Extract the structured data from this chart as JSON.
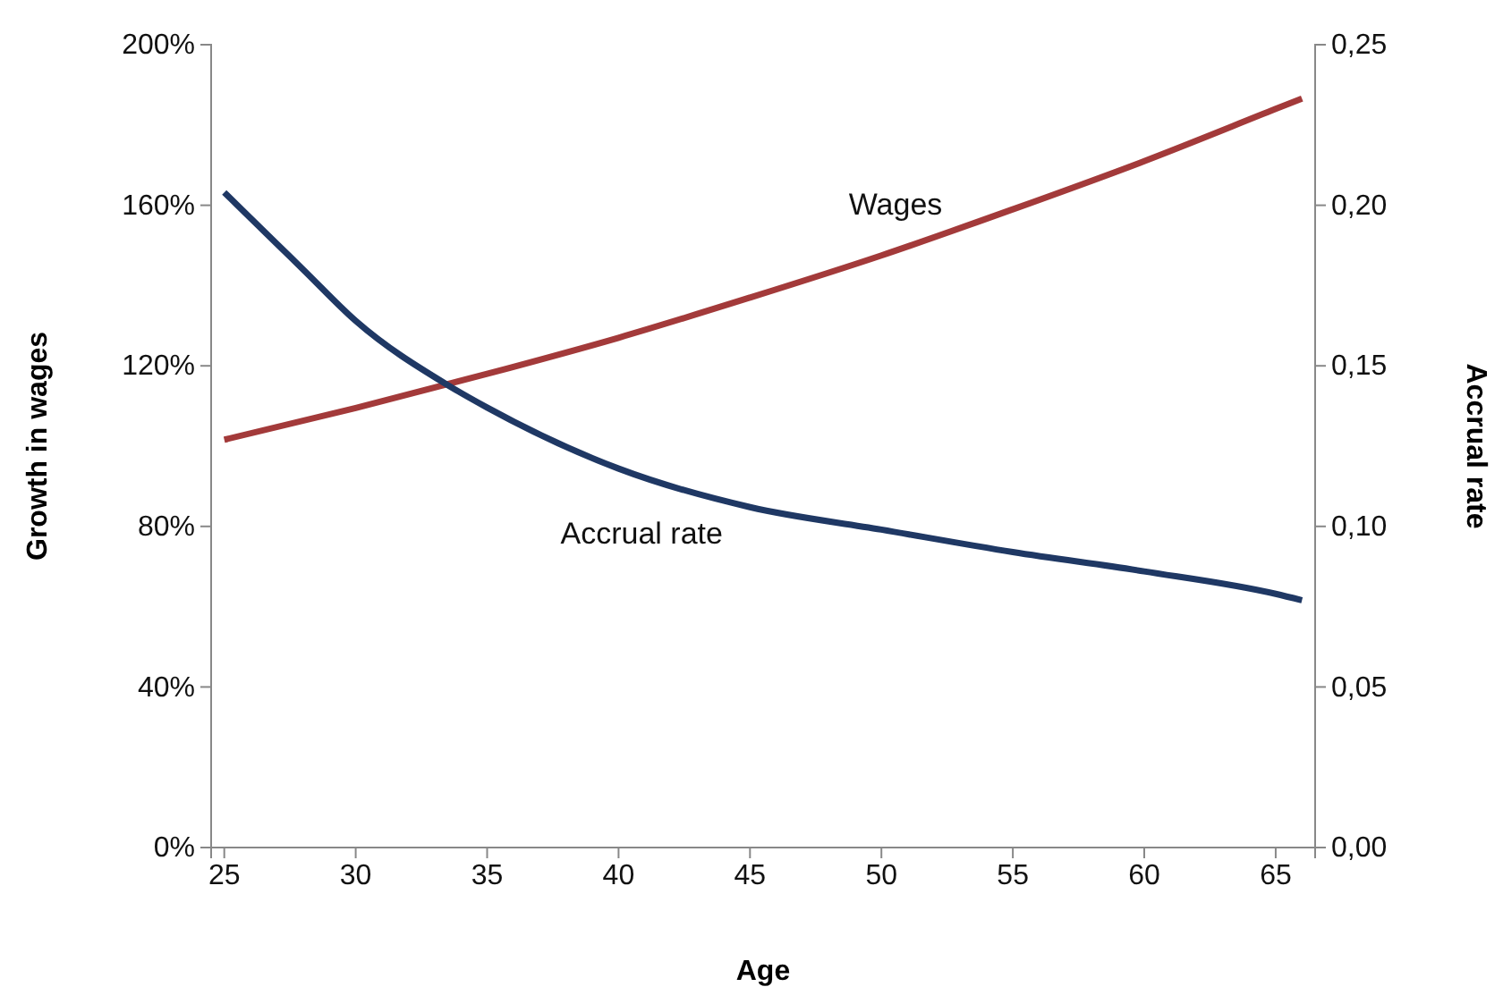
{
  "chart_data": {
    "type": "line",
    "xlabel": "Age",
    "ylabel": "Growth in wages",
    "y2label": "Accrual rate",
    "xlim": [
      24.5,
      66.5
    ],
    "xticks": [
      25,
      30,
      35,
      40,
      45,
      50,
      55,
      60,
      65
    ],
    "ylim": [
      0,
      200
    ],
    "yticks": [
      {
        "value": 0,
        "label": "0%"
      },
      {
        "value": 40,
        "label": "40%"
      },
      {
        "value": 80,
        "label": "80%"
      },
      {
        "value": 120,
        "label": "120%"
      },
      {
        "value": 160,
        "label": "160%"
      },
      {
        "value": 200,
        "label": "200%"
      }
    ],
    "y2lim": [
      0,
      0.25
    ],
    "y2ticks": [
      {
        "value": 0,
        "label": "0,00"
      },
      {
        "value": 0.05,
        "label": "0,05"
      },
      {
        "value": 0.1,
        "label": "0,10"
      },
      {
        "value": 0.15,
        "label": "0,15"
      },
      {
        "value": 0.2,
        "label": "0,20"
      },
      {
        "value": 0.25,
        "label": "0,25"
      }
    ],
    "grid": false,
    "legend": false,
    "marker": "none",
    "line_style": "solid",
    "series": [
      {
        "name": "Wages",
        "color": "#a33a3a",
        "x": [
          25,
          30,
          35,
          40,
          45,
          50,
          55,
          60,
          65,
          66
        ],
        "values": [
          101.6,
          109.5,
          118,
          127,
          137,
          147.5,
          159,
          171,
          184,
          186.6
        ]
      },
      {
        "name": "Accrual rate",
        "color": "#1f3864",
        "axis": "y2",
        "x": [
          25,
          26,
          27,
          28,
          30,
          33.5,
          35,
          40,
          45,
          50,
          55,
          60,
          65,
          66
        ],
        "values": [
          0.204,
          0.196,
          0.188,
          0.18,
          0.164,
          0.144,
          0.137,
          0.118,
          0.106,
          0.099,
          0.092,
          0.086,
          0.079,
          0.077
        ]
      }
    ]
  }
}
